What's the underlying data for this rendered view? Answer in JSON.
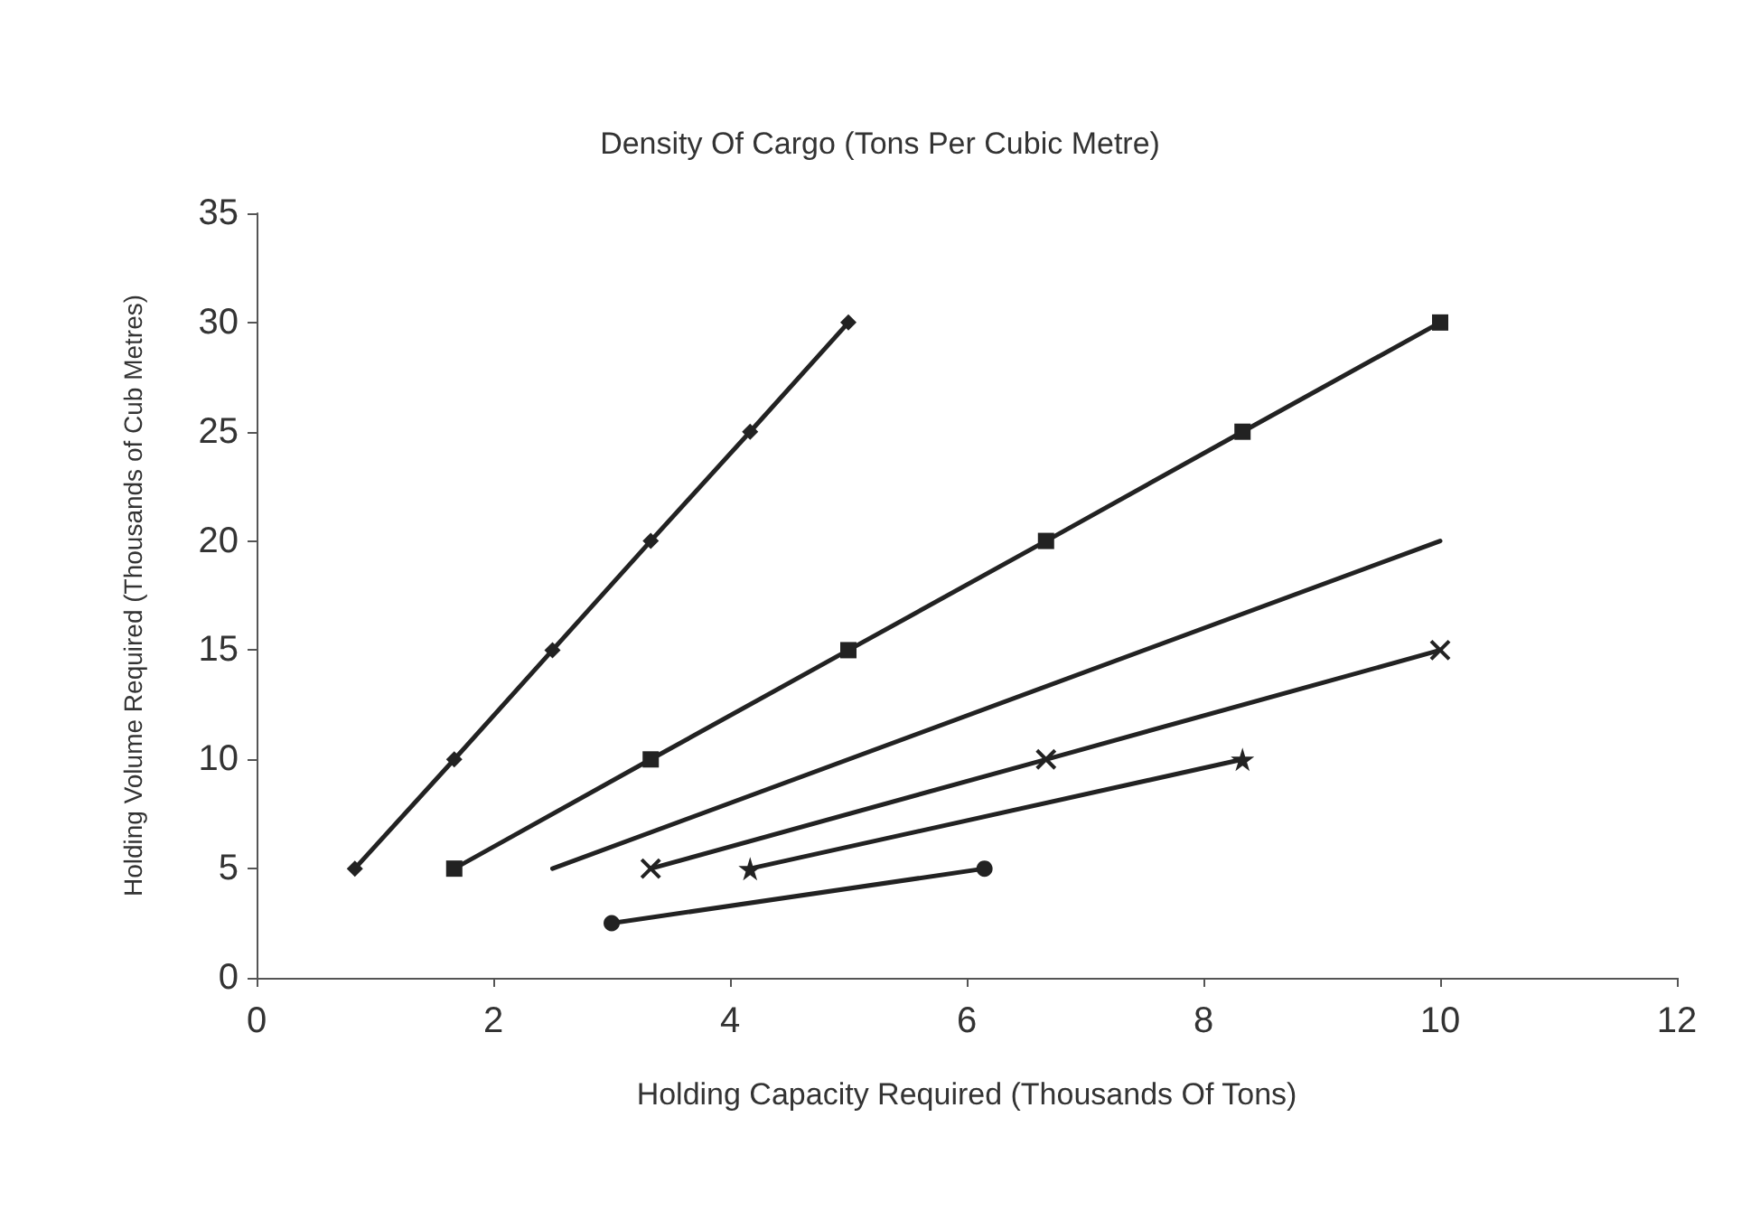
{
  "chart_data": {
    "type": "line",
    "title": "Density Of Cargo (Tons Per Cubic Metre)",
    "xlabel": "Holding Capacity Required (Thousands Of Tons)",
    "ylabel": "Holding Volume Required (Thousands of Cub Metres)",
    "series": [
      {
        "color": "#222222",
        "marker": "diamond",
        "x": [
          0.83,
          1.67,
          2.5,
          3.33,
          4.17,
          5
        ],
        "values": [
          5,
          10,
          15,
          20,
          25,
          30
        ]
      },
      {
        "color": "#222222",
        "marker": "square",
        "x": [
          1.67,
          3.33,
          5,
          6.67,
          8.33,
          10
        ],
        "values": [
          5,
          10,
          15,
          20,
          25,
          30
        ]
      },
      {
        "color": "#222222",
        "marker": "none",
        "x": [
          2.5,
          10
        ],
        "values": [
          5,
          20
        ]
      },
      {
        "color": "#222222",
        "marker": "cross",
        "x": [
          3.33,
          6.67,
          10
        ],
        "values": [
          5,
          10,
          15
        ]
      },
      {
        "color": "#222222",
        "marker": "star",
        "x": [
          4.17,
          8.33
        ],
        "values": [
          5,
          10
        ]
      },
      {
        "color": "#222222",
        "marker": "circle",
        "x": [
          3,
          6.15
        ],
        "values": [
          2.5,
          5
        ]
      }
    ],
    "xlim": [
      0,
      12
    ],
    "xticks": [
      0,
      2,
      4,
      6,
      8,
      10,
      12
    ],
    "ylim": [
      0,
      35
    ],
    "yticks": [
      0,
      5,
      10,
      15,
      20,
      25,
      30,
      35
    ],
    "grid": false,
    "line_style": "solid"
  }
}
